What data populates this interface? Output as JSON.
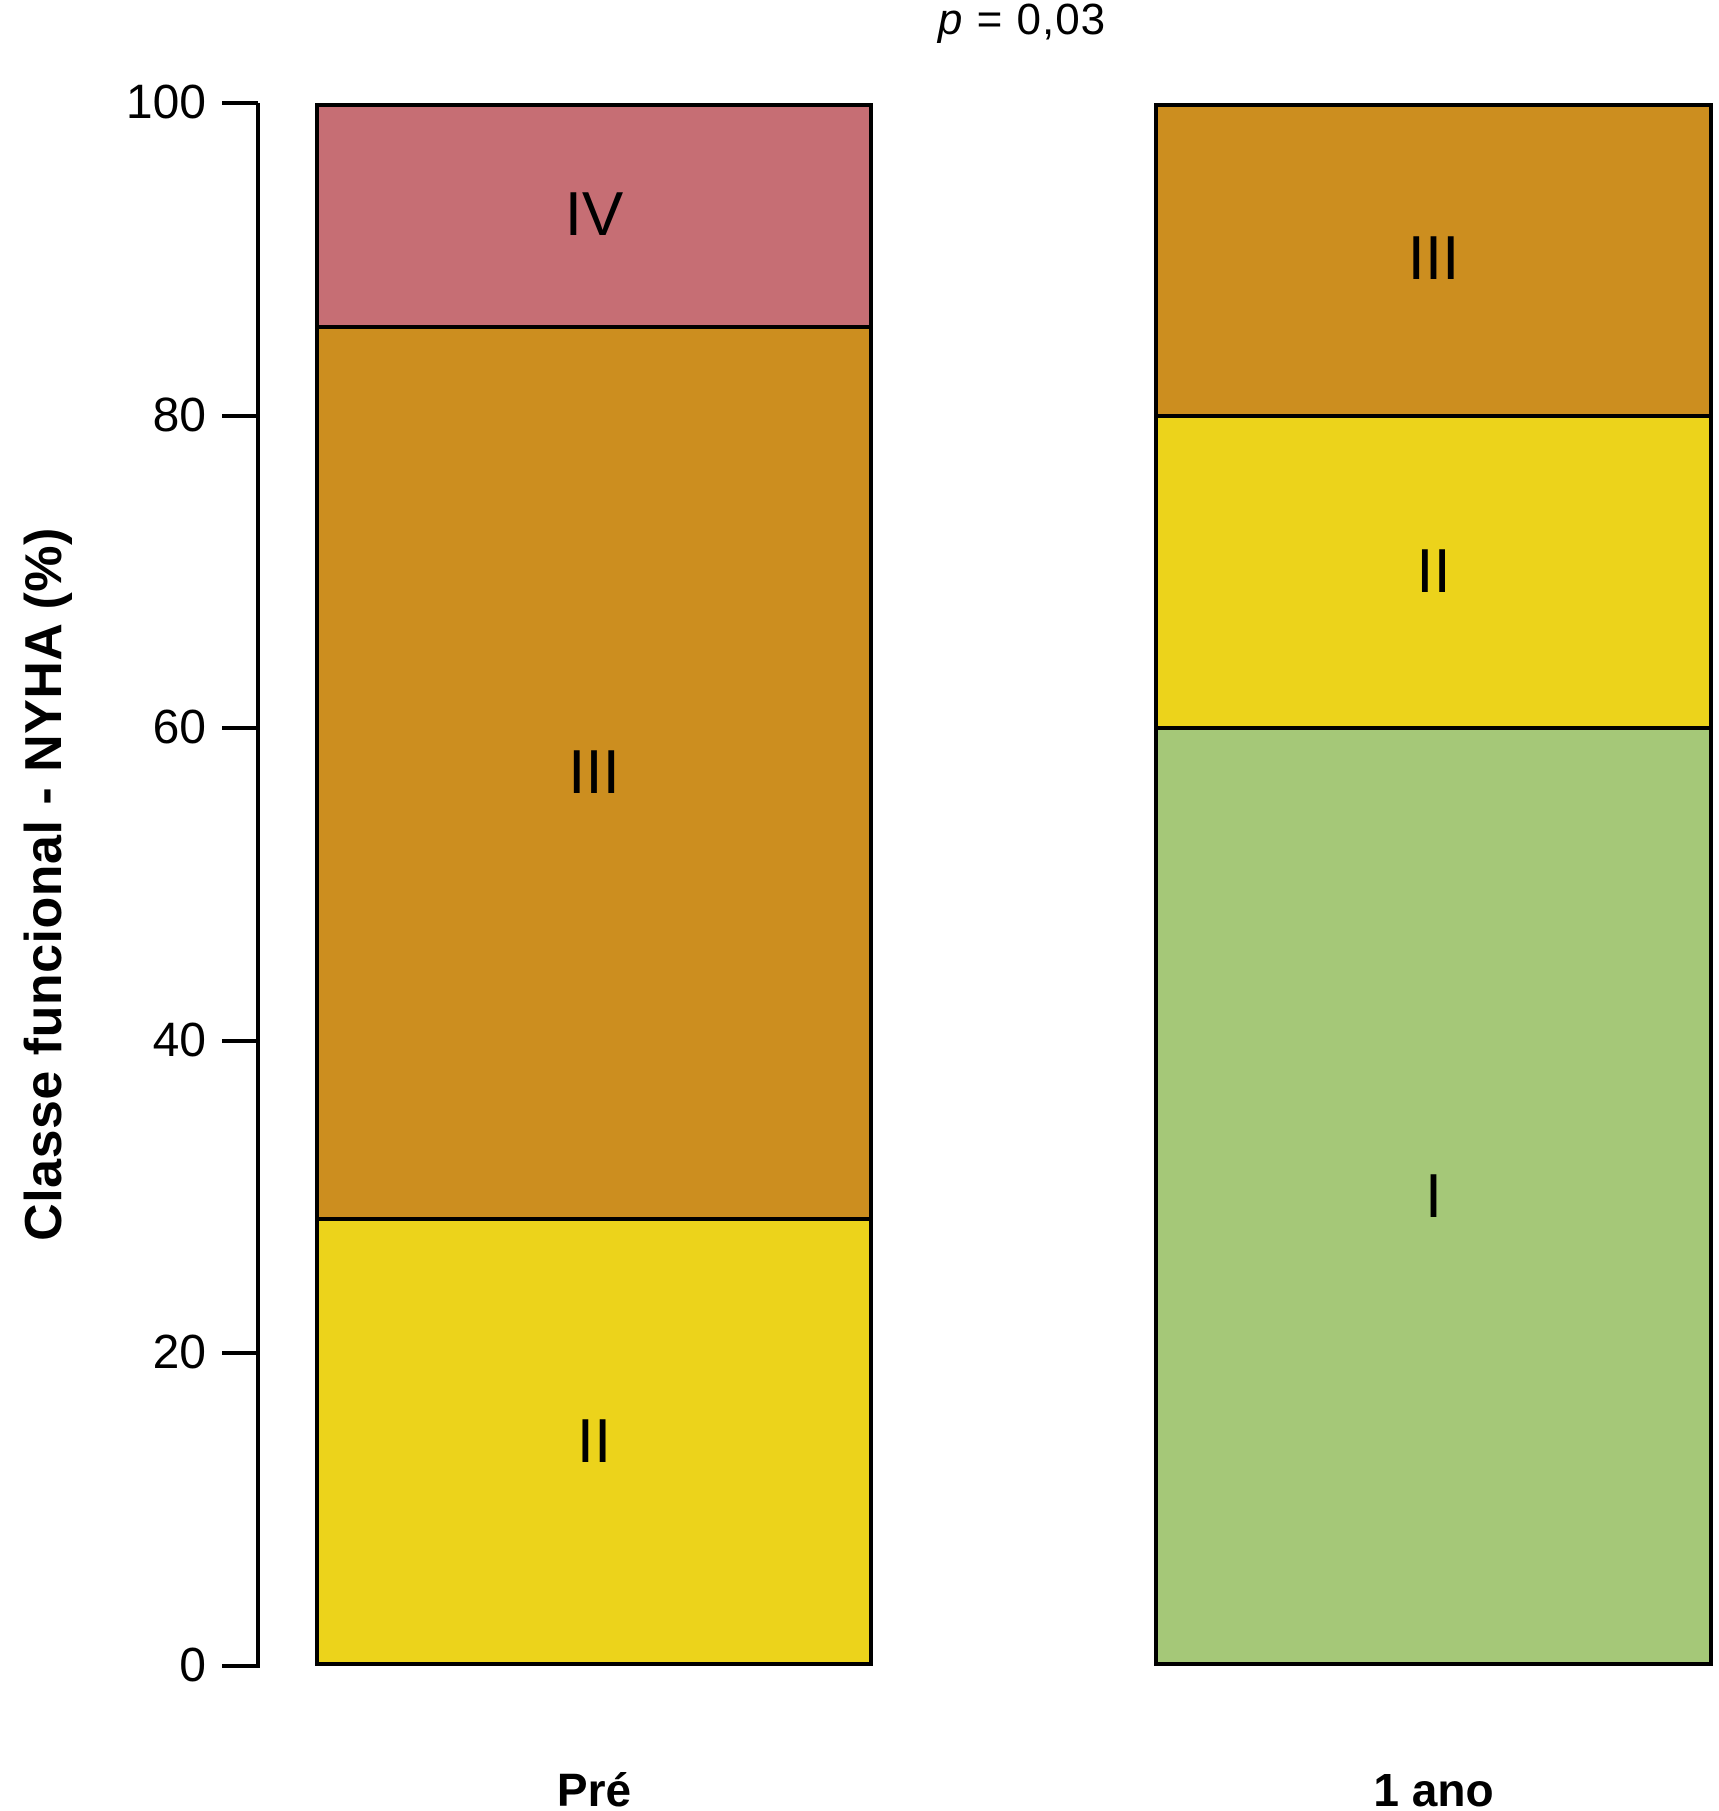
{
  "title": {
    "variable": "p",
    "rest": " = 0,03"
  },
  "chart_data": {
    "type": "bar",
    "stacked": true,
    "title": "p = 0,03",
    "xlabel": "",
    "ylabel": "Classe funcional - NYHA (%)",
    "ylim": [
      0,
      100
    ],
    "yticks": [
      0,
      20,
      40,
      60,
      80,
      100
    ],
    "grid": false,
    "legend": "none (labels inside segments)",
    "categories": [
      "Pré",
      "1 ano"
    ],
    "series": [
      {
        "name": "I",
        "color": "#a5c878",
        "values": [
          0,
          60
        ]
      },
      {
        "name": "II",
        "color": "#ecd31b",
        "values": [
          28.6,
          20
        ]
      },
      {
        "name": "III",
        "color": "#cc8e1f",
        "values": [
          57.1,
          20
        ]
      },
      {
        "name": "IV",
        "color": "#c66e74",
        "values": [
          14.3,
          0
        ]
      }
    ]
  }
}
